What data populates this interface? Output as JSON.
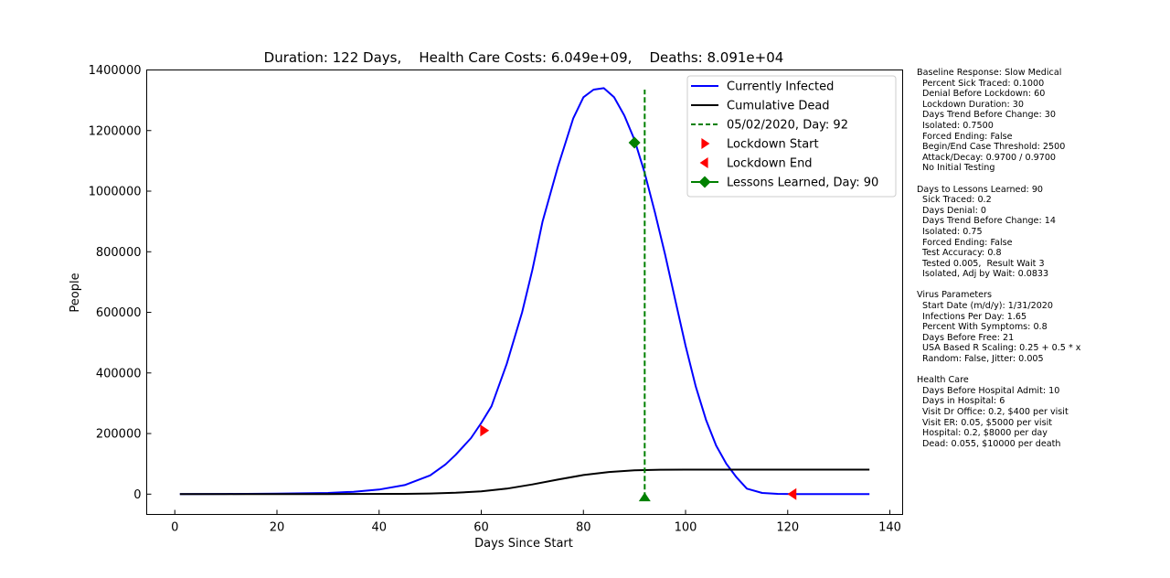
{
  "chart_data": {
    "type": "line",
    "title": "Duration: 122 Days,    Health Care Costs: 6.049e+09,    Deaths: 8.091e+04",
    "xlabel": "Days Since Start",
    "ylabel": "People",
    "xlim": [
      -5.5,
      142.5
    ],
    "ylim": [
      -67000,
      1400000
    ],
    "x_ticks": [
      0,
      20,
      40,
      60,
      80,
      100,
      120,
      140
    ],
    "x_tick_labels": [
      "0",
      "20",
      "40",
      "60",
      "80",
      "100",
      "120",
      "140"
    ],
    "y_ticks": [
      0,
      200000,
      400000,
      600000,
      800000,
      1000000,
      1200000,
      1400000
    ],
    "y_tick_labels": [
      "0",
      "200000",
      "400000",
      "600000",
      "800000",
      "1000000",
      "1200000",
      "1400000"
    ],
    "grid": false,
    "legend_position": "top-right",
    "series": [
      {
        "name": "Currently Infected",
        "color": "#0000ff",
        "style": "line",
        "x": [
          1,
          10,
          20,
          30,
          35,
          40,
          45,
          50,
          53,
          55,
          58,
          60,
          62,
          65,
          68,
          70,
          72,
          75,
          78,
          80,
          82,
          84,
          86,
          88,
          90,
          92,
          94,
          96,
          98,
          100,
          102,
          104,
          106,
          108,
          110,
          112,
          115,
          118,
          121,
          125,
          130,
          136
        ],
        "values": [
          0,
          500,
          1500,
          4000,
          8000,
          15000,
          30000,
          62000,
          98000,
          130000,
          185000,
          235000,
          290000,
          430000,
          600000,
          740000,
          900000,
          1080000,
          1240000,
          1310000,
          1335000,
          1340000,
          1310000,
          1250000,
          1170000,
          1060000,
          930000,
          790000,
          640000,
          490000,
          355000,
          245000,
          160000,
          100000,
          55000,
          18000,
          4000,
          1000,
          0,
          0,
          0,
          0
        ]
      },
      {
        "name": "Cumulative Dead",
        "color": "#000000",
        "style": "line",
        "x": [
          1,
          30,
          45,
          50,
          55,
          60,
          65,
          70,
          75,
          80,
          85,
          90,
          95,
          100,
          110,
          120,
          136
        ],
        "values": [
          0,
          200,
          1000,
          2000,
          4500,
          9000,
          18000,
          32000,
          48000,
          63000,
          73000,
          78500,
          80500,
          80900,
          80910,
          80910,
          80910
        ]
      }
    ],
    "vline": {
      "label": "05/02/2020, Day: 92",
      "x": 92,
      "y_range": [
        -12000,
        1335000
      ],
      "color": "#008000"
    },
    "markers": [
      {
        "name": "Lockdown Start",
        "x": 60.5,
        "y": 210000,
        "shape": "triangle-right",
        "color": "#ff0000"
      },
      {
        "name": "Lockdown End",
        "x": 121,
        "y": 0,
        "shape": "triangle-left",
        "color": "#ff0000"
      },
      {
        "name": "Lessons Learned, Day: 90",
        "x": 90,
        "y": 1160000,
        "shape": "diamond",
        "color": "#008000"
      },
      {
        "name": "",
        "x": 92,
        "y": -12000,
        "shape": "triangle-up",
        "color": "#008000"
      }
    ],
    "legend": [
      {
        "label": "Currently Infected",
        "kind": "line",
        "color": "#0000ff"
      },
      {
        "label": "Cumulative Dead",
        "kind": "line",
        "color": "#000000"
      },
      {
        "label": "05/02/2020, Day: 92",
        "kind": "dashed",
        "color": "#008000"
      },
      {
        "label": "Lockdown Start",
        "kind": "triangle-right",
        "color": "#ff0000"
      },
      {
        "label": "Lockdown End",
        "kind": "triangle-left",
        "color": "#ff0000"
      },
      {
        "label": "Lessons Learned, Day: 90",
        "kind": "line-diamond",
        "color": "#008000"
      }
    ]
  },
  "params": [
    {
      "header": "Baseline Response: Slow Medical",
      "items": [
        "Percent Sick Traced: 0.1000",
        "Denial Before Lockdown: 60",
        "Lockdown Duration: 30",
        "Days Trend Before Change: 30",
        "Isolated: 0.7500",
        "Forced Ending: False",
        "Begin/End Case Threshold: 2500",
        "Attack/Decay: 0.9700 / 0.9700",
        "No Initial Testing"
      ]
    },
    {
      "header": "Days to Lessons Learned: 90",
      "items": [
        "Sick Traced: 0.2",
        "Days Denial: 0",
        "Days Trend Before Change: 14",
        "Isolated: 0.75",
        "Forced Ending: False",
        "Test Accuracy: 0.8",
        "Tested 0.005,  Result Wait 3",
        "Isolated, Adj by Wait: 0.0833"
      ]
    },
    {
      "header": "Virus Parameters",
      "items": [
        "Start Date (m/d/y): 1/31/2020",
        "Infections Per Day: 1.65",
        "Percent With Symptoms: 0.8",
        "Days Before Free: 21",
        "USA Based R Scaling: 0.25 + 0.5 * x",
        "Random: False, Jitter: 0.005"
      ]
    },
    {
      "header": "Health Care",
      "items": [
        "Days Before Hospital Admit: 10",
        "Days in Hospital: 6",
        "Visit Dr Office: 0.2, $400 per visit",
        "Visit ER: 0.05, $5000 per visit",
        "Hospital: 0.2, $8000 per day",
        "Dead: 0.055, $10000 per death"
      ]
    }
  ]
}
